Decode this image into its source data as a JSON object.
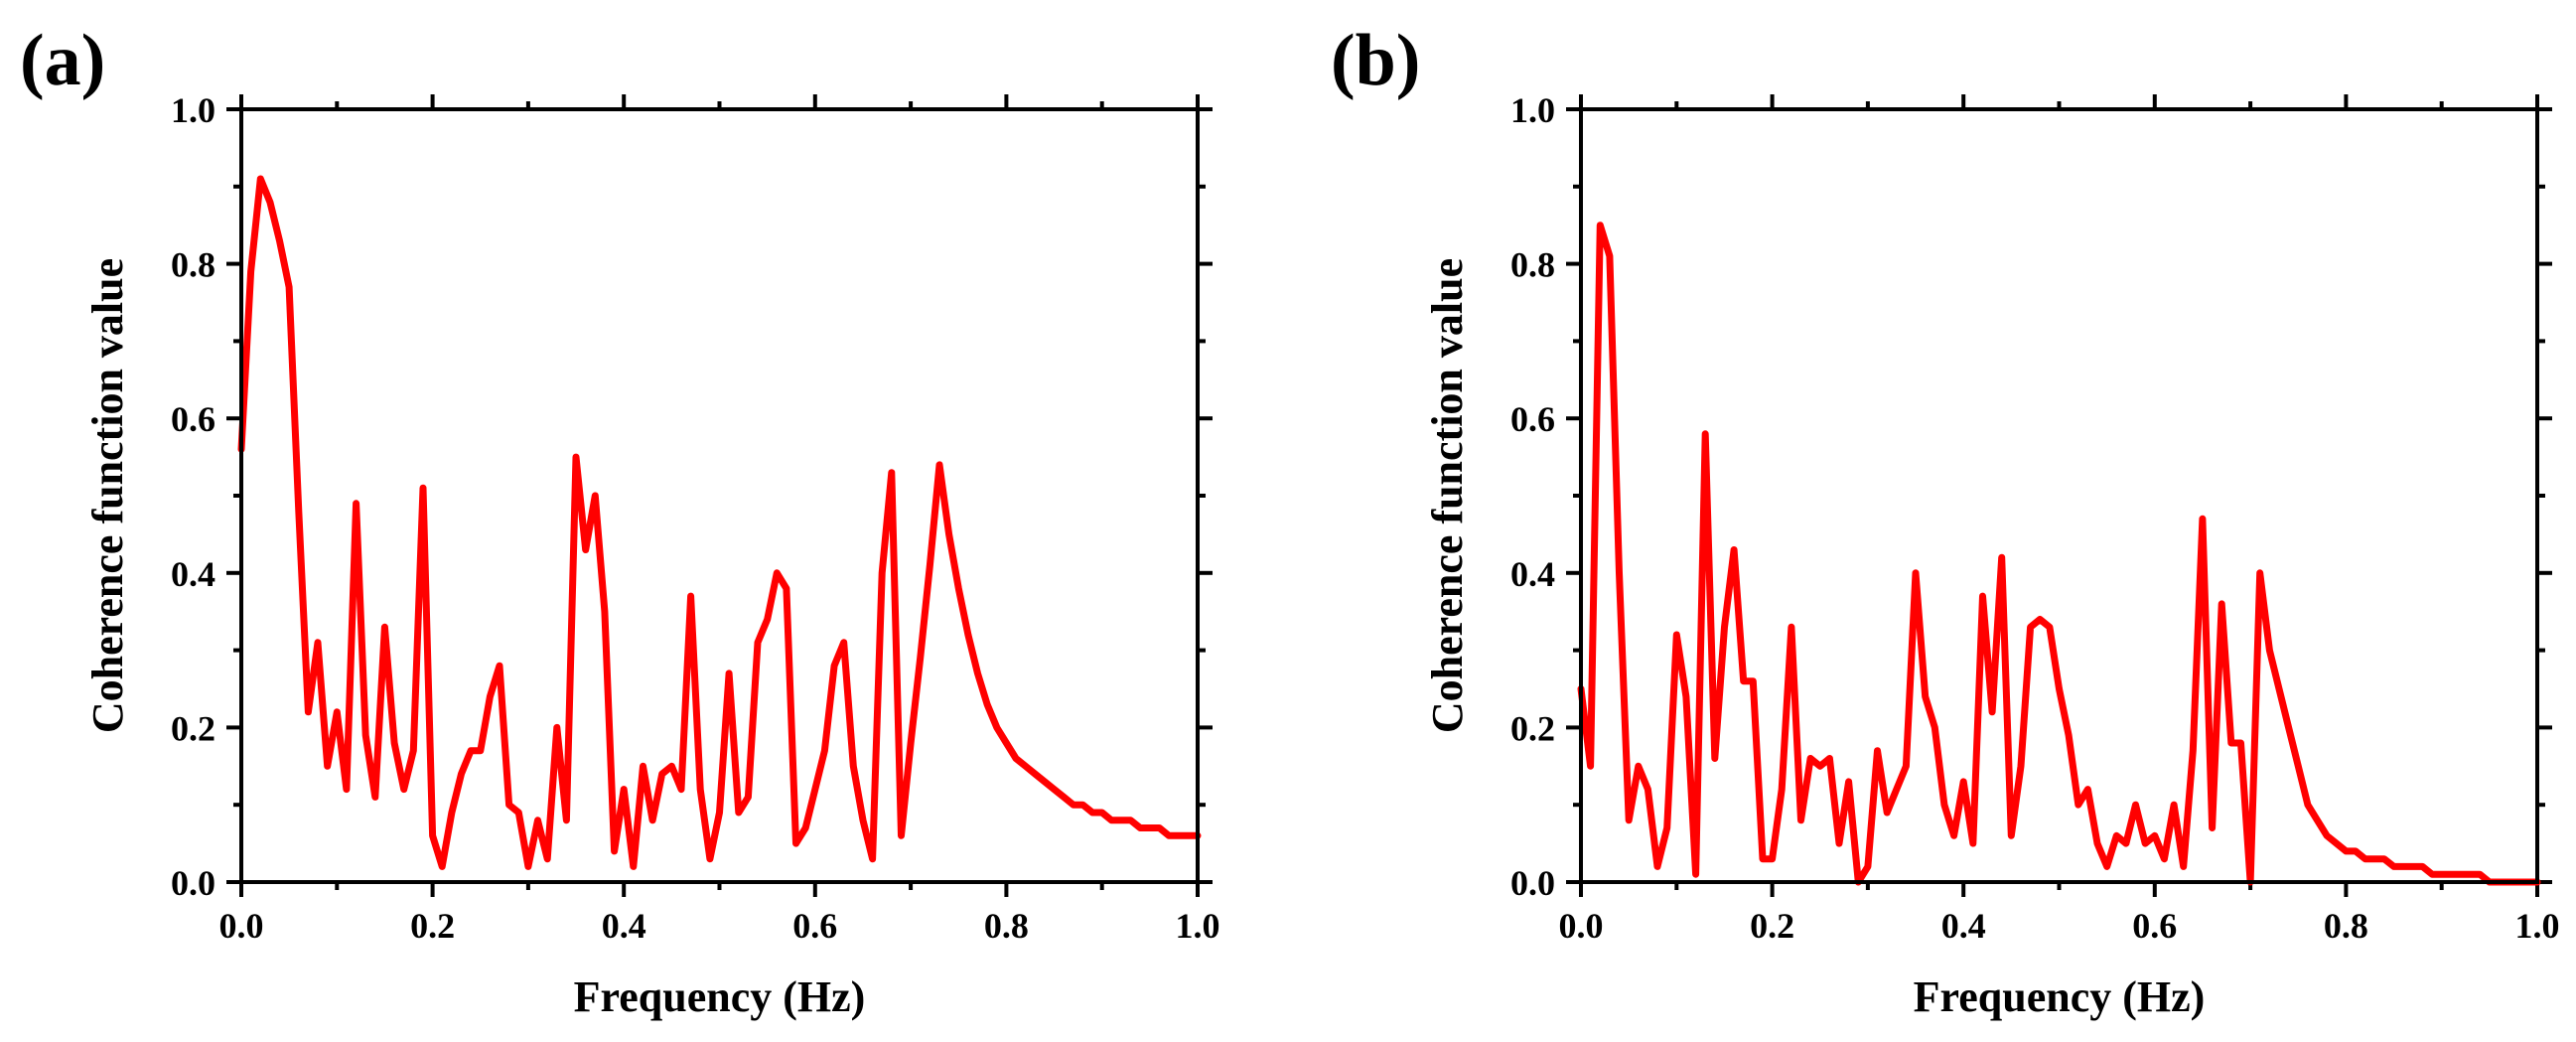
{
  "figure": {
    "background": "#ffffff"
  },
  "chart_data": [
    {
      "panel_label": "(a)",
      "type": "line",
      "xlabel": "Frequency (Hz)",
      "ylabel": "Coherence function value",
      "xlim": [
        0,
        1
      ],
      "ylim": [
        0,
        1
      ],
      "xticks": [
        0,
        0.2,
        0.4,
        0.6,
        0.8,
        1.0
      ],
      "yticks": [
        0,
        0.2,
        0.4,
        0.6,
        0.8,
        1.0
      ],
      "xtick_labels": [
        "0.0",
        "0.2",
        "0.4",
        "0.6",
        "0.8",
        "1.0"
      ],
      "ytick_labels": [
        "0.0",
        "0.2",
        "0.4",
        "0.6",
        "0.8",
        "1.0"
      ],
      "grid": false,
      "series": [
        {
          "name": "coherence",
          "color": "#ff0000",
          "x": [
            0.0,
            0.01,
            0.02,
            0.03,
            0.04,
            0.05,
            0.06,
            0.07,
            0.08,
            0.09,
            0.1,
            0.11,
            0.12,
            0.13,
            0.14,
            0.15,
            0.16,
            0.17,
            0.18,
            0.19,
            0.2,
            0.21,
            0.22,
            0.23,
            0.24,
            0.25,
            0.26,
            0.27,
            0.28,
            0.29,
            0.3,
            0.31,
            0.32,
            0.33,
            0.34,
            0.35,
            0.36,
            0.37,
            0.38,
            0.39,
            0.4,
            0.41,
            0.42,
            0.43,
            0.44,
            0.45,
            0.46,
            0.47,
            0.48,
            0.49,
            0.5,
            0.51,
            0.52,
            0.53,
            0.54,
            0.55,
            0.56,
            0.57,
            0.58,
            0.59,
            0.6,
            0.61,
            0.62,
            0.63,
            0.64,
            0.65,
            0.66,
            0.67,
            0.68,
            0.69,
            0.7,
            0.71,
            0.72,
            0.73,
            0.74,
            0.75,
            0.76,
            0.77,
            0.78,
            0.79,
            0.8,
            0.81,
            0.82,
            0.83,
            0.84,
            0.85,
            0.86,
            0.87,
            0.88,
            0.89,
            0.9,
            0.91,
            0.92,
            0.93,
            0.94,
            0.95,
            0.96,
            0.97,
            0.98,
            0.99,
            1.0
          ],
          "y": [
            0.56,
            0.79,
            0.91,
            0.88,
            0.83,
            0.77,
            0.48,
            0.22,
            0.31,
            0.15,
            0.22,
            0.12,
            0.49,
            0.19,
            0.11,
            0.33,
            0.18,
            0.12,
            0.17,
            0.51,
            0.06,
            0.02,
            0.09,
            0.14,
            0.17,
            0.17,
            0.24,
            0.28,
            0.1,
            0.09,
            0.02,
            0.08,
            0.03,
            0.2,
            0.08,
            0.55,
            0.43,
            0.5,
            0.35,
            0.04,
            0.12,
            0.02,
            0.15,
            0.08,
            0.14,
            0.15,
            0.12,
            0.37,
            0.12,
            0.03,
            0.09,
            0.27,
            0.09,
            0.11,
            0.31,
            0.34,
            0.4,
            0.38,
            0.05,
            0.07,
            0.12,
            0.17,
            0.28,
            0.31,
            0.15,
            0.08,
            0.03,
            0.4,
            0.53,
            0.06,
            0.18,
            0.29,
            0.41,
            0.54,
            0.45,
            0.38,
            0.32,
            0.27,
            0.23,
            0.2,
            0.18,
            0.16,
            0.15,
            0.14,
            0.13,
            0.12,
            0.11,
            0.1,
            0.1,
            0.09,
            0.09,
            0.08,
            0.08,
            0.08,
            0.07,
            0.07,
            0.07,
            0.06,
            0.06,
            0.06,
            0.06
          ]
        }
      ]
    },
    {
      "panel_label": "(b)",
      "type": "line",
      "xlabel": "Frequency (Hz)",
      "ylabel": "Coherence function value",
      "xlim": [
        0,
        1
      ],
      "ylim": [
        0,
        1
      ],
      "xticks": [
        0,
        0.2,
        0.4,
        0.6,
        0.8,
        1.0
      ],
      "yticks": [
        0,
        0.2,
        0.4,
        0.6,
        0.8,
        1.0
      ],
      "xtick_labels": [
        "0.0",
        "0.2",
        "0.4",
        "0.6",
        "0.8",
        "1.0"
      ],
      "ytick_labels": [
        "0.0",
        "0.2",
        "0.4",
        "0.6",
        "0.8",
        "1.0"
      ],
      "grid": false,
      "series": [
        {
          "name": "coherence",
          "color": "#ff0000",
          "x": [
            0.0,
            0.01,
            0.02,
            0.03,
            0.04,
            0.05,
            0.06,
            0.07,
            0.08,
            0.09,
            0.1,
            0.11,
            0.12,
            0.13,
            0.14,
            0.15,
            0.16,
            0.17,
            0.18,
            0.19,
            0.2,
            0.21,
            0.22,
            0.23,
            0.24,
            0.25,
            0.26,
            0.27,
            0.28,
            0.29,
            0.3,
            0.31,
            0.32,
            0.33,
            0.34,
            0.35,
            0.36,
            0.37,
            0.38,
            0.39,
            0.4,
            0.41,
            0.42,
            0.43,
            0.44,
            0.45,
            0.46,
            0.47,
            0.48,
            0.49,
            0.5,
            0.51,
            0.52,
            0.53,
            0.54,
            0.55,
            0.56,
            0.57,
            0.58,
            0.59,
            0.6,
            0.61,
            0.62,
            0.63,
            0.64,
            0.65,
            0.66,
            0.67,
            0.68,
            0.69,
            0.7,
            0.71,
            0.72,
            0.73,
            0.74,
            0.75,
            0.76,
            0.77,
            0.78,
            0.79,
            0.8,
            0.81,
            0.82,
            0.83,
            0.84,
            0.85,
            0.86,
            0.87,
            0.88,
            0.89,
            0.9,
            0.91,
            0.92,
            0.93,
            0.94,
            0.95,
            0.96,
            0.97,
            0.98,
            0.99,
            1.0
          ],
          "y": [
            0.25,
            0.15,
            0.85,
            0.81,
            0.4,
            0.08,
            0.15,
            0.12,
            0.02,
            0.07,
            0.32,
            0.24,
            0.01,
            0.58,
            0.16,
            0.33,
            0.43,
            0.26,
            0.26,
            0.03,
            0.03,
            0.12,
            0.33,
            0.08,
            0.16,
            0.15,
            0.16,
            0.05,
            0.13,
            0.0,
            0.02,
            0.17,
            0.09,
            0.12,
            0.15,
            0.4,
            0.24,
            0.2,
            0.1,
            0.06,
            0.13,
            0.05,
            0.37,
            0.22,
            0.42,
            0.06,
            0.15,
            0.33,
            0.34,
            0.33,
            0.25,
            0.19,
            0.1,
            0.12,
            0.05,
            0.02,
            0.06,
            0.05,
            0.1,
            0.05,
            0.06,
            0.03,
            0.1,
            0.02,
            0.17,
            0.47,
            0.07,
            0.36,
            0.18,
            0.18,
            0.0,
            0.4,
            0.3,
            0.25,
            0.2,
            0.15,
            0.1,
            0.08,
            0.06,
            0.05,
            0.04,
            0.04,
            0.03,
            0.03,
            0.03,
            0.02,
            0.02,
            0.02,
            0.02,
            0.01,
            0.01,
            0.01,
            0.01,
            0.01,
            0.01,
            0.0,
            0.0,
            0.0,
            0.0,
            0.0,
            0.0
          ]
        }
      ]
    }
  ]
}
